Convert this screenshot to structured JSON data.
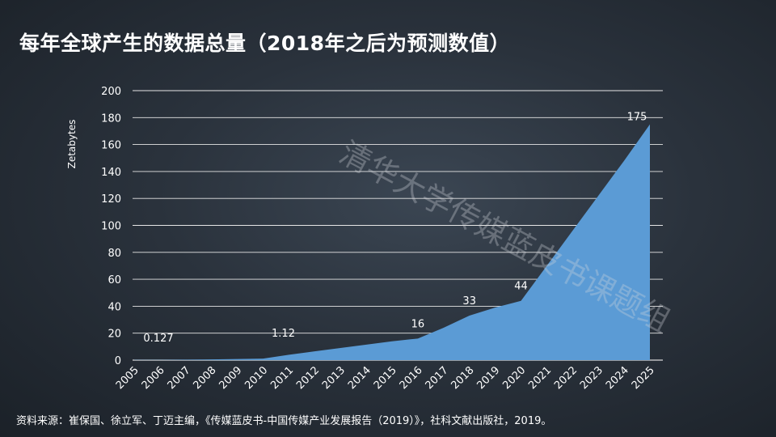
{
  "page": {
    "title": "每年全球产生的数据总量（2018年之后为预测数值）",
    "source": "资料来源：崔保国、徐立军、丁迈主编，《传媒蓝皮书-中国传媒产业发展报告（2019）》，社科文献出版社，2019。",
    "watermark": "清华大学传媒蓝皮书课题组"
  },
  "chart_data": {
    "type": "area",
    "title": "每年全球产生的数据总量（2018年之后为预测数值）",
    "ylabel": "Zetabytes",
    "xlabel": "",
    "ylim": [
      0,
      200
    ],
    "yticks": [
      0,
      20,
      40,
      60,
      80,
      100,
      120,
      140,
      160,
      180,
      200
    ],
    "grid": true,
    "legend": "none",
    "color": "#5b9bd5",
    "categories": [
      "2005",
      "2006",
      "2007",
      "2008",
      "2009",
      "2010",
      "2011",
      "2012",
      "2013",
      "2014",
      "2015",
      "2016",
      "2017",
      "2018",
      "2019",
      "2020",
      "2021",
      "2022",
      "2023",
      "2024",
      "2025"
    ],
    "values": [
      0.127,
      0.17,
      0.28,
      0.49,
      0.8,
      1.12,
      4,
      6.5,
      9,
      11.5,
      14,
      16,
      24,
      33,
      39,
      44,
      70,
      96,
      122,
      148,
      175
    ],
    "data_labels": [
      {
        "category": "2005",
        "text": "0.127"
      },
      {
        "category": "2010",
        "text": "1.12"
      },
      {
        "category": "2016",
        "text": "16"
      },
      {
        "category": "2018",
        "text": "33"
      },
      {
        "category": "2020",
        "text": "44"
      },
      {
        "category": "2025",
        "text": "175"
      }
    ]
  }
}
